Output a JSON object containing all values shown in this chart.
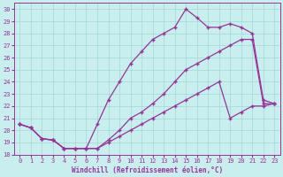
{
  "xlabel": "Windchill (Refroidissement éolien,°C)",
  "background_color": "#c8eeee",
  "line_color": "#993399",
  "xlim": [
    -0.5,
    23.5
  ],
  "ylim": [
    18,
    30.5
  ],
  "xticks": [
    0,
    1,
    2,
    3,
    4,
    5,
    6,
    7,
    8,
    9,
    10,
    11,
    12,
    13,
    14,
    15,
    16,
    17,
    18,
    19,
    20,
    21,
    22,
    23
  ],
  "yticks": [
    18,
    19,
    20,
    21,
    22,
    23,
    24,
    25,
    26,
    27,
    28,
    29,
    30
  ],
  "grid_color": "#a0d8d8",
  "series1_x": [
    0,
    1,
    2,
    3,
    4,
    5,
    6,
    7,
    8,
    9,
    10,
    11,
    12,
    13,
    14,
    15,
    16,
    17,
    18,
    19,
    20,
    21,
    22,
    23
  ],
  "series1_y": [
    20.5,
    20.2,
    19.3,
    19.2,
    18.5,
    18.5,
    18.5,
    18.5,
    19.2,
    20.0,
    21.0,
    21.5,
    22.2,
    23.0,
    24.0,
    25.0,
    25.5,
    26.0,
    26.5,
    27.0,
    27.5,
    27.5,
    22.2,
    22.2
  ],
  "series2_x": [
    0,
    1,
    2,
    3,
    4,
    5,
    6,
    7,
    8,
    9,
    10,
    11,
    12,
    13,
    14,
    15,
    16,
    17,
    18,
    19,
    20,
    21,
    22,
    23
  ],
  "series2_y": [
    20.5,
    20.2,
    19.3,
    19.2,
    18.5,
    18.5,
    18.5,
    20.5,
    22.5,
    24.0,
    25.5,
    26.5,
    27.5,
    28.0,
    28.5,
    30.0,
    29.3,
    28.5,
    28.5,
    28.8,
    28.5,
    28.0,
    22.5,
    22.2
  ],
  "series3_x": [
    0,
    1,
    2,
    3,
    4,
    5,
    6,
    7,
    8,
    9,
    10,
    11,
    12,
    13,
    14,
    15,
    16,
    17,
    18,
    19,
    20,
    21,
    22,
    23
  ],
  "series3_y": [
    20.5,
    20.2,
    19.3,
    19.2,
    18.5,
    18.5,
    18.5,
    18.5,
    19.0,
    19.5,
    20.0,
    20.5,
    21.0,
    21.5,
    22.0,
    22.5,
    23.0,
    23.5,
    24.0,
    21.0,
    21.5,
    22.0,
    22.0,
    22.2
  ]
}
